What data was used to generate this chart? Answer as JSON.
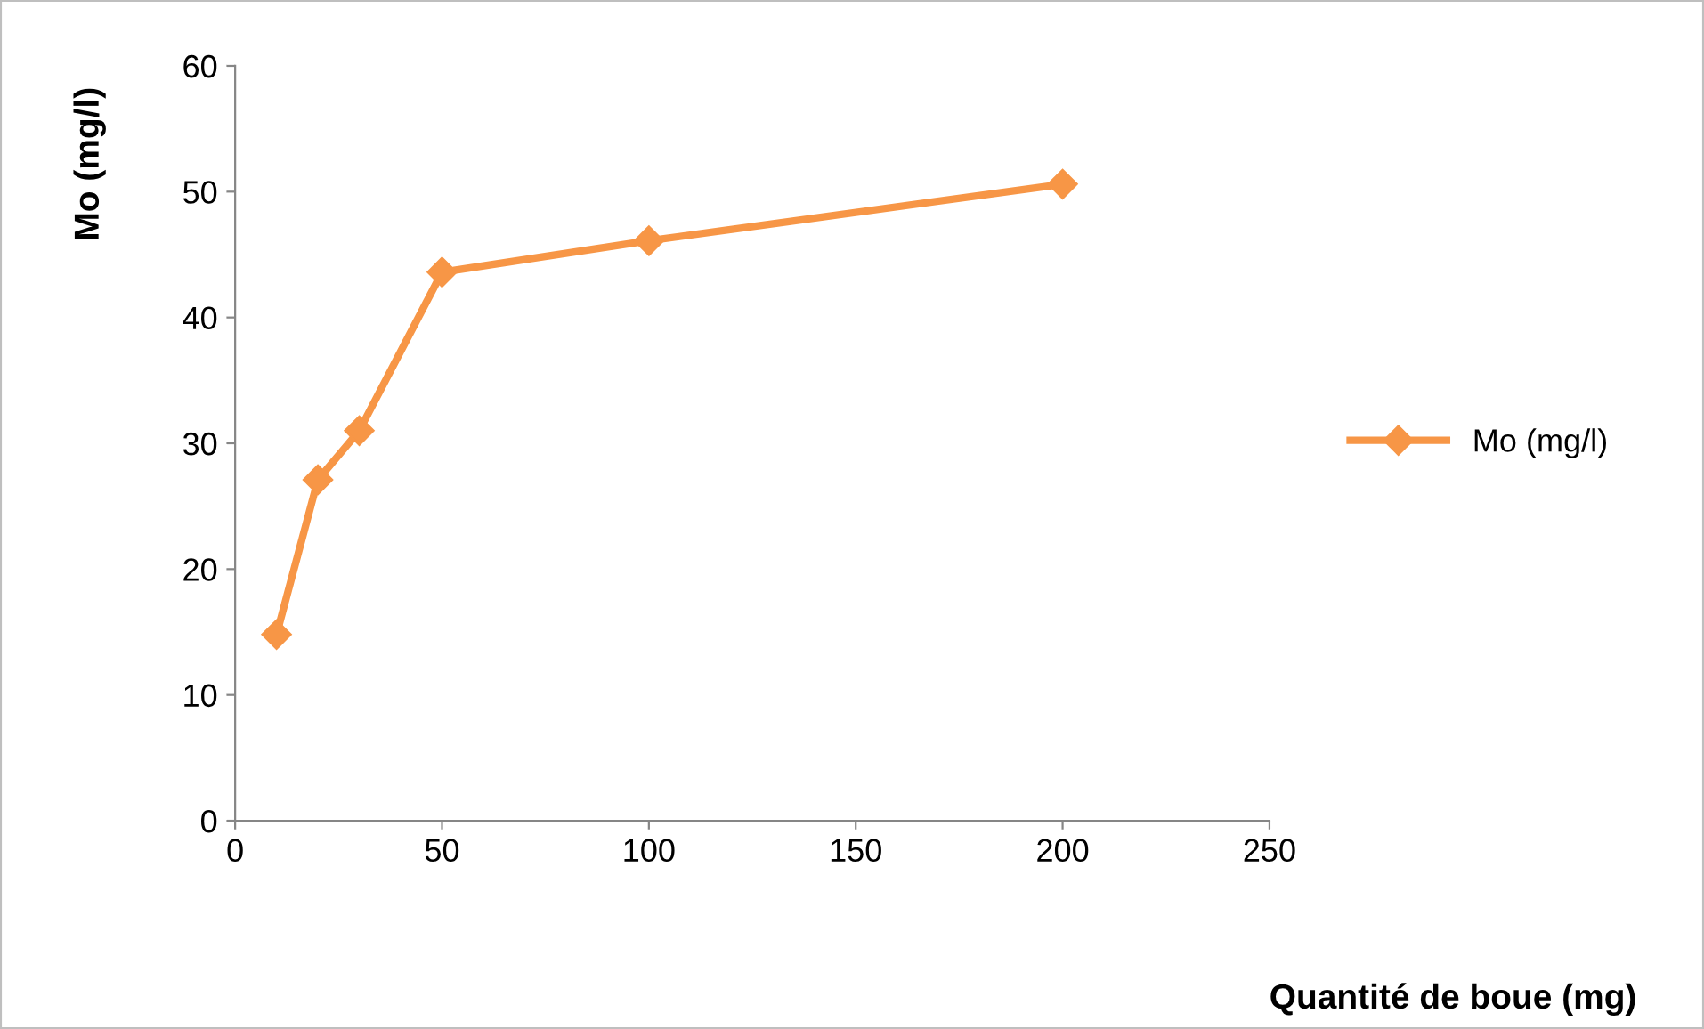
{
  "chart_data": {
    "type": "line",
    "xlabel": "Quantité de boue (mg)",
    "ylabel": "Mo (mg/l)",
    "x": [
      10,
      20,
      30,
      50,
      100,
      200
    ],
    "series": [
      {
        "name": "Mo (mg/l)",
        "color": "#f79646",
        "values": [
          14.8,
          27.1,
          31.0,
          43.6,
          46.1,
          50.6
        ]
      }
    ],
    "xlim": [
      0,
      250
    ],
    "xticks": [
      0,
      50,
      100,
      150,
      200,
      250
    ],
    "ylim": [
      0,
      60
    ],
    "yticks": [
      0,
      10,
      20,
      30,
      40,
      50,
      60
    ],
    "grid": false,
    "legend": "right",
    "marker": "diamond",
    "line_style": "solid"
  }
}
